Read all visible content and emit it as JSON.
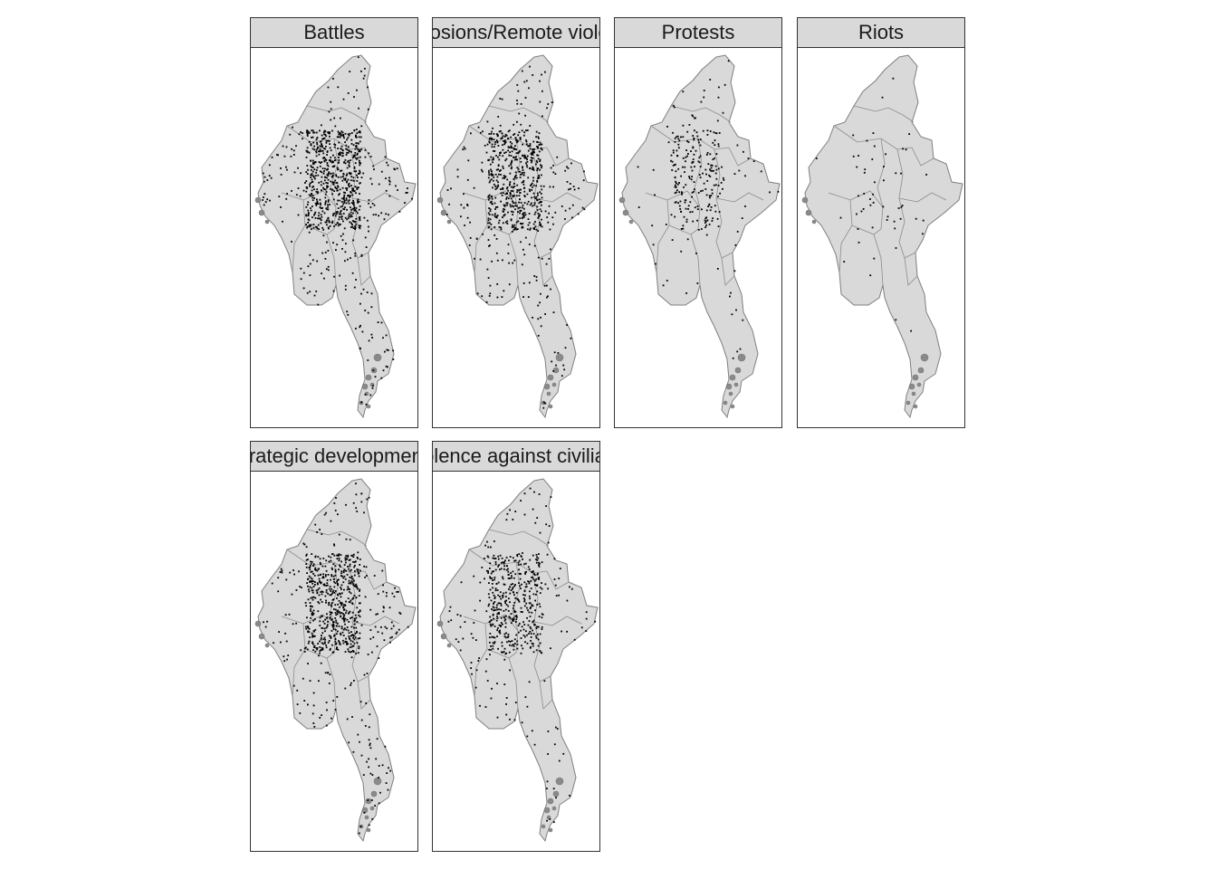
{
  "facets": [
    {
      "label": "Battles",
      "density": 0.95
    },
    {
      "label": "Explosions/Remote violence",
      "density": 0.8
    },
    {
      "label": "Protests",
      "density": 0.3
    },
    {
      "label": "Riots",
      "density": 0.06
    },
    {
      "label": "Strategic developments",
      "density": 0.85
    },
    {
      "label": "Violence against civilians",
      "density": 0.6
    }
  ],
  "colors": {
    "land": "#d9d9d9",
    "border": "#7f7f7f",
    "strip": "#d9d9d9",
    "event_point": "#000000"
  }
}
